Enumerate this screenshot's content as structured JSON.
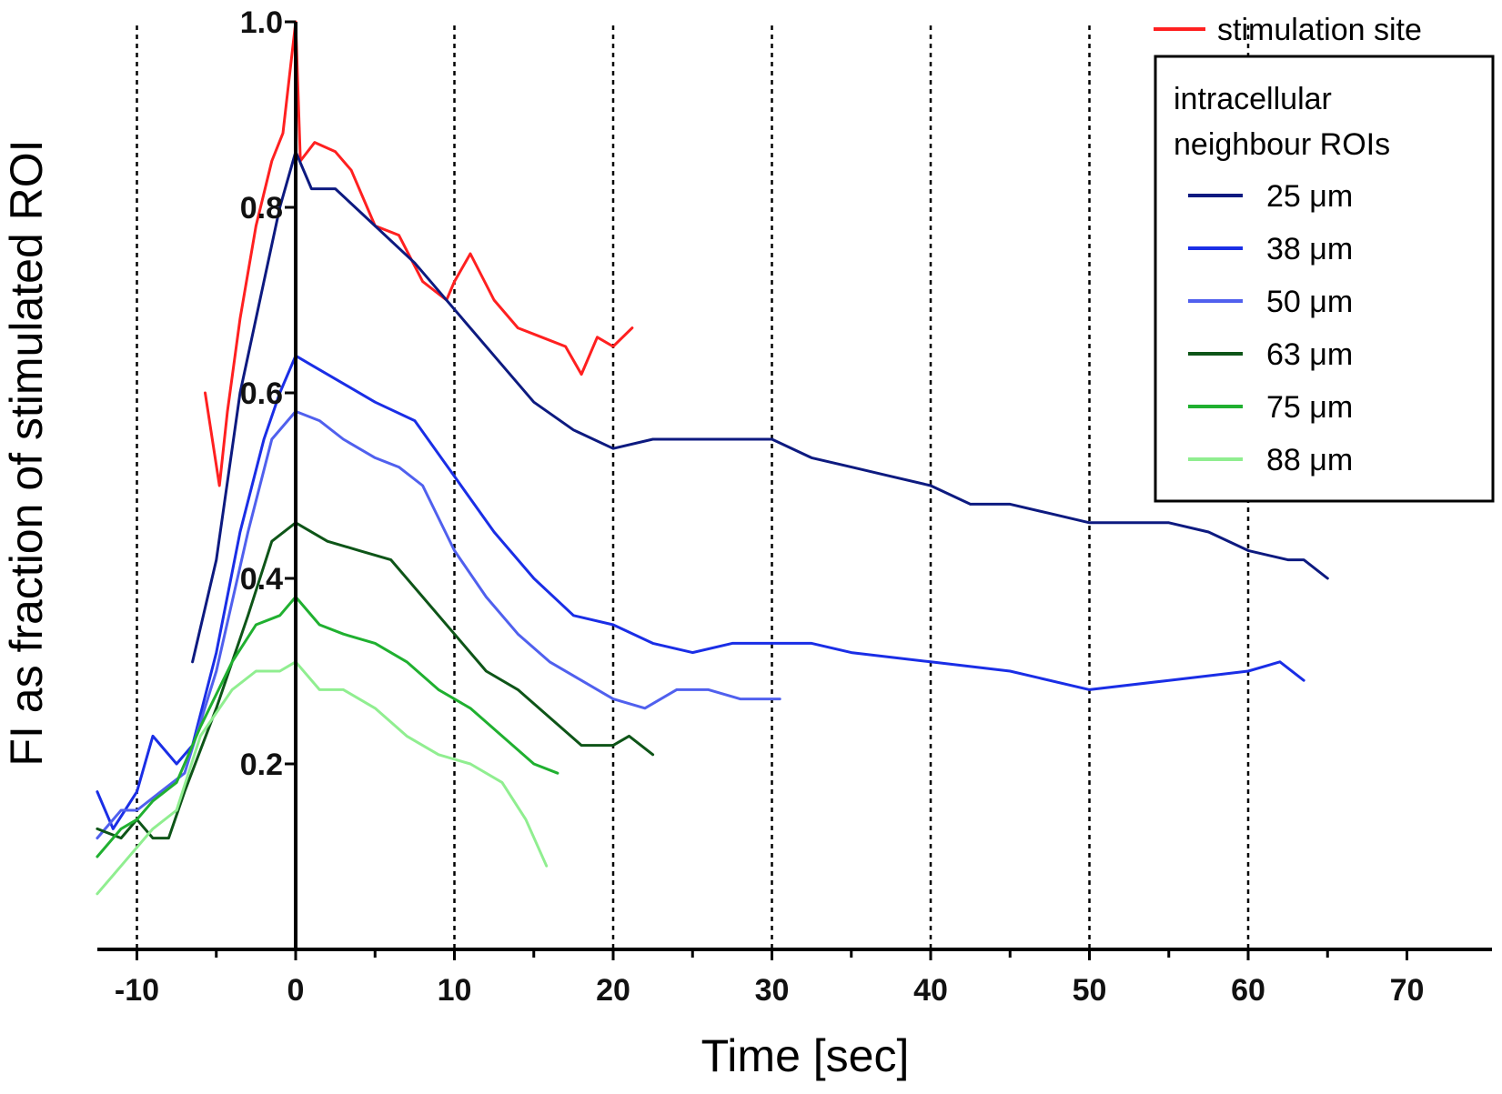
{
  "chart_data": {
    "type": "line",
    "title": "",
    "xlabel": "Time [sec]",
    "ylabel": "FI as fraction of stimulated ROI",
    "xlim": [
      -12.5,
      75
    ],
    "ylim": [
      0,
      1.0
    ],
    "x_ticks": [
      "-10",
      "0",
      "10",
      "20",
      "30",
      "40",
      "50",
      "60",
      "70"
    ],
    "y_ticks": [
      "0.2",
      "0.4",
      "0.6",
      "0.8",
      "1.0"
    ],
    "vertical_dotted_lines": [
      -10,
      10,
      20,
      30,
      40,
      50,
      60
    ],
    "legend": {
      "placement": "top-right",
      "stimulation_label": "stimulation site",
      "group_title_line1": "intracellular",
      "group_title_line2": "neighbour ROIs"
    },
    "series": [
      {
        "name": "stimulation site",
        "color": "#ff2020",
        "x": [
          -5.7,
          -4.8,
          -4.3,
          -3.5,
          -2.5,
          -1.5,
          -0.8,
          0,
          0.3,
          1.2,
          2.5,
          3.5,
          5,
          6.5,
          8,
          9.5,
          10,
          11,
          12.5,
          14,
          15.5,
          17,
          18,
          19,
          20,
          21.2
        ],
        "y": [
          0.6,
          0.5,
          0.58,
          0.68,
          0.78,
          0.85,
          0.88,
          1.0,
          0.85,
          0.87,
          0.86,
          0.84,
          0.78,
          0.77,
          0.72,
          0.7,
          0.72,
          0.75,
          0.7,
          0.67,
          0.66,
          0.65,
          0.62,
          0.66,
          0.65,
          0.67
        ]
      },
      {
        "name": "25 μm",
        "color": "#0d1a80",
        "x": [
          -6.5,
          -5,
          -3.5,
          -2,
          -1,
          0,
          1,
          2.5,
          5,
          7.5,
          10,
          12.5,
          15,
          17.5,
          20,
          22.5,
          25,
          27.5,
          30,
          32.5,
          35,
          37.5,
          40,
          42.5,
          45,
          47.5,
          50,
          52.5,
          55,
          57.5,
          60,
          62.5,
          63.5,
          65
        ],
        "y": [
          0.31,
          0.42,
          0.6,
          0.72,
          0.8,
          0.86,
          0.82,
          0.82,
          0.78,
          0.74,
          0.69,
          0.64,
          0.59,
          0.56,
          0.54,
          0.55,
          0.55,
          0.55,
          0.55,
          0.53,
          0.52,
          0.51,
          0.5,
          0.48,
          0.48,
          0.47,
          0.46,
          0.46,
          0.46,
          0.45,
          0.43,
          0.42,
          0.42,
          0.4
        ]
      },
      {
        "name": "38 μm",
        "color": "#1a2ee6",
        "x": [
          -12.5,
          -11.5,
          -10,
          -9,
          -7.5,
          -6.5,
          -5,
          -3.5,
          -2,
          -1,
          0,
          1,
          3,
          5,
          7.5,
          10,
          12.5,
          15,
          17.5,
          20,
          22.5,
          25,
          27.5,
          30,
          32.5,
          35,
          40,
          45,
          50,
          55,
          60,
          62,
          63.5
        ],
        "y": [
          0.17,
          0.13,
          0.17,
          0.23,
          0.2,
          0.22,
          0.32,
          0.45,
          0.55,
          0.6,
          0.64,
          0.63,
          0.61,
          0.59,
          0.57,
          0.51,
          0.45,
          0.4,
          0.36,
          0.35,
          0.33,
          0.32,
          0.33,
          0.33,
          0.33,
          0.32,
          0.31,
          0.3,
          0.28,
          0.29,
          0.3,
          0.31,
          0.29
        ]
      },
      {
        "name": "50 μm",
        "color": "#5060ee",
        "x": [
          -12.5,
          -11,
          -10,
          -8.5,
          -7,
          -5,
          -3,
          -1.5,
          0,
          1.5,
          3,
          5,
          6.5,
          8,
          10,
          12,
          14,
          16,
          18,
          20,
          22,
          24,
          26,
          28,
          30.5
        ],
        "y": [
          0.12,
          0.15,
          0.15,
          0.17,
          0.19,
          0.3,
          0.45,
          0.55,
          0.58,
          0.57,
          0.55,
          0.53,
          0.52,
          0.5,
          0.43,
          0.38,
          0.34,
          0.31,
          0.29,
          0.27,
          0.26,
          0.28,
          0.28,
          0.27,
          0.27
        ]
      },
      {
        "name": "63 μm",
        "color": "#0e5518",
        "x": [
          -12.5,
          -11,
          -10,
          -9,
          -8,
          -7,
          -5,
          -3,
          -1.5,
          0,
          2,
          4,
          6,
          8,
          10,
          12,
          14,
          16,
          18,
          20,
          21,
          22.5
        ],
        "y": [
          0.13,
          0.12,
          0.14,
          0.12,
          0.12,
          0.17,
          0.26,
          0.36,
          0.44,
          0.46,
          0.44,
          0.43,
          0.42,
          0.38,
          0.34,
          0.3,
          0.28,
          0.25,
          0.22,
          0.22,
          0.23,
          0.21
        ]
      },
      {
        "name": "75 μm",
        "color": "#20b030",
        "x": [
          -12.5,
          -11,
          -10,
          -9,
          -7.5,
          -6,
          -4,
          -2.5,
          -1,
          0,
          1.5,
          3,
          5,
          7,
          9,
          11,
          13,
          15,
          16.5
        ],
        "y": [
          0.1,
          0.13,
          0.14,
          0.16,
          0.18,
          0.24,
          0.31,
          0.35,
          0.36,
          0.38,
          0.35,
          0.34,
          0.33,
          0.31,
          0.28,
          0.26,
          0.23,
          0.2,
          0.19
        ]
      },
      {
        "name": "88 μm",
        "color": "#90ee90",
        "x": [
          -12.5,
          -11,
          -10,
          -9,
          -7.5,
          -6,
          -4,
          -2.5,
          -1,
          0,
          1.5,
          3,
          5,
          7,
          9,
          11,
          13,
          14.5,
          15.8
        ],
        "y": [
          0.06,
          0.09,
          0.11,
          0.13,
          0.15,
          0.23,
          0.28,
          0.3,
          0.3,
          0.31,
          0.28,
          0.28,
          0.26,
          0.23,
          0.21,
          0.2,
          0.18,
          0.14,
          0.09
        ]
      }
    ]
  }
}
